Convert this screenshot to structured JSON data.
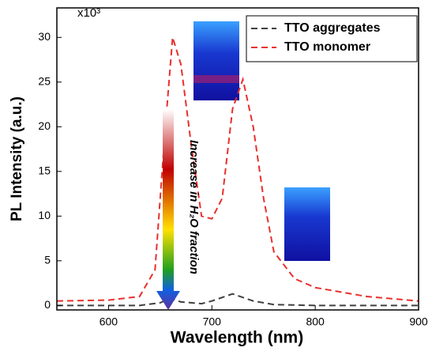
{
  "chart_data": {
    "type": "line",
    "multiplier": "x10³",
    "x_label": "Wavelength (nm)",
    "y_label": "PL Intensity (a.u.)",
    "annotation": "Increase in H₂O fraction",
    "xlim": [
      550,
      900
    ],
    "ylim": [
      -0.5,
      33.3
    ],
    "xticks": [
      600,
      700,
      800,
      900
    ],
    "yticks": [
      0,
      5,
      10,
      15,
      20,
      25,
      30
    ],
    "legend": "top-right",
    "series": [
      {
        "name": "TTO aggregates",
        "color": "#404040",
        "x": [
          550,
          630,
          650,
          660,
          670,
          690,
          700,
          720,
          740,
          760,
          800,
          900
        ],
        "values": [
          0,
          0,
          0.3,
          0.8,
          0.4,
          0.2,
          0.5,
          1.3,
          0.5,
          0.1,
          0,
          0
        ]
      },
      {
        "name": "TTO monomer",
        "color": "#e8302c",
        "x": [
          550,
          600,
          630,
          645,
          655,
          662,
          670,
          680,
          690,
          700,
          710,
          720,
          730,
          740,
          750,
          760,
          780,
          800,
          850,
          900
        ],
        "values": [
          0.5,
          0.6,
          1,
          4,
          20,
          30,
          27,
          18,
          10,
          9.7,
          12,
          22,
          25.3,
          20,
          12,
          6,
          3,
          2,
          1,
          0.5
        ]
      }
    ]
  }
}
